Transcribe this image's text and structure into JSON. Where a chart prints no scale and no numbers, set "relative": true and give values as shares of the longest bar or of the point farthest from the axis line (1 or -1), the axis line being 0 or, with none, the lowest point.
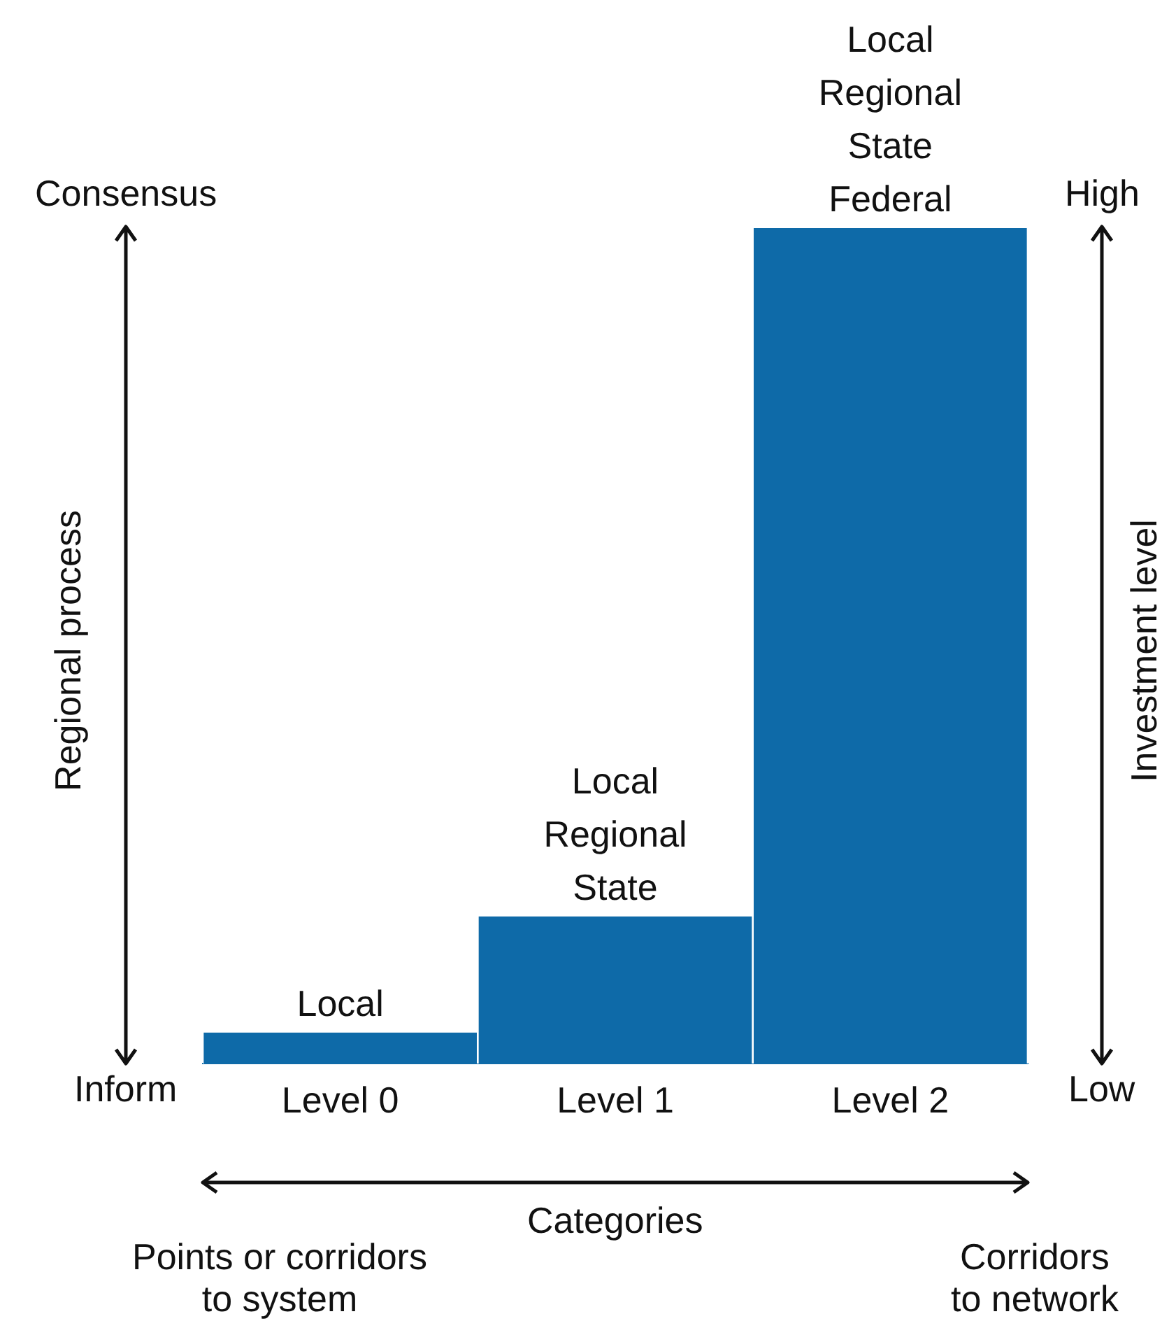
{
  "chart_data": {
    "type": "bar",
    "relative": true,
    "categories": [
      "Level 0",
      "Level 1",
      "Level 2"
    ],
    "values": [
      0.037,
      0.176,
      1
    ],
    "color": "#0e6aa8",
    "xlabel": "Categories",
    "ylabel": "Regional process",
    "y2label": "Investment level",
    "annotations": [
      "Consensus",
      "Inform",
      "High",
      "Low",
      "Points or corridors\nto system",
      "Corridors\nto network",
      {
        "text": "Local",
        "x": "Level 0",
        "y": 0.037
      },
      {
        "text": "Local\nRegional\nState",
        "x": "Level 1",
        "y": 0.176
      },
      {
        "text": "Local\nRegional\nState\nFederal",
        "x": "Level 2",
        "y": 1
      }
    ],
    "grid": false,
    "legend": false
  }
}
